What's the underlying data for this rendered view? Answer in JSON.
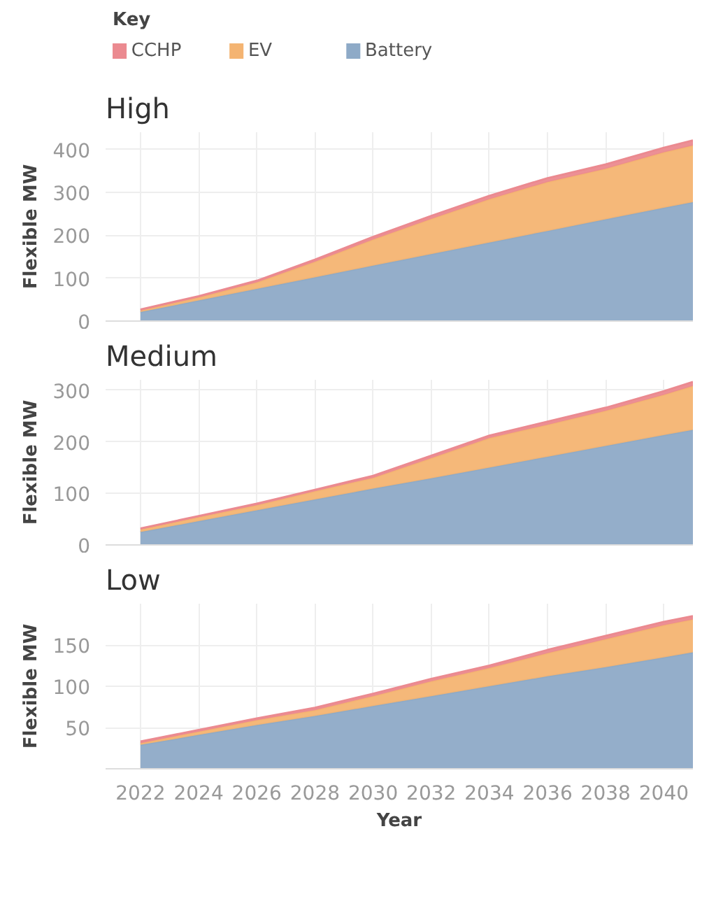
{
  "chart_data": [
    {
      "type": "area",
      "stacked": true,
      "title": "High",
      "ylabel": "Flexible MW",
      "legend_title": "Key",
      "legend": "top",
      "grid": true,
      "tick_labels": "y",
      "x": [
        2022,
        2024,
        2026,
        2028,
        2030,
        2032,
        2034,
        2036,
        2038,
        2040,
        2041
      ],
      "xlim": [
        2020.8,
        2041
      ],
      "xticks": [
        2022,
        2024,
        2026,
        2028,
        2030,
        2032,
        2034,
        2036,
        2038,
        2040
      ],
      "ylim": [
        0,
        440
      ],
      "yticks": [
        0,
        100,
        200,
        300,
        400
      ],
      "series": [
        {
          "name": "Battery",
          "color": "#8eaac7",
          "values": [
            21,
            48,
            75,
            102,
            129,
            156,
            183,
            210,
            237,
            264,
            277
          ]
        },
        {
          "name": "EV",
          "color": "#f4b472",
          "values": [
            4,
            7,
            15,
            36,
            61,
            82,
            101,
            114,
            118,
            129,
            132
          ]
        },
        {
          "name": "CCHP",
          "color": "#eb8a90",
          "values": [
            2,
            3,
            4,
            5,
            6,
            7,
            8,
            9,
            10,
            11,
            12
          ]
        }
      ]
    },
    {
      "type": "area",
      "stacked": true,
      "title": "Medium",
      "ylabel": "Flexible MW",
      "grid": true,
      "tick_labels": "y",
      "x": [
        2022,
        2024,
        2026,
        2028,
        2030,
        2032,
        2034,
        2036,
        2038,
        2040,
        2041
      ],
      "xlim": [
        2020.8,
        2041
      ],
      "xticks": [
        2022,
        2024,
        2026,
        2028,
        2030,
        2032,
        2034,
        2036,
        2038,
        2040
      ],
      "ylim": [
        0,
        320
      ],
      "yticks": [
        0,
        100,
        200,
        300
      ],
      "series": [
        {
          "color": "#8eaac7",
          "values": [
            25,
            46,
            67,
            88,
            109,
            129,
            150,
            171,
            192,
            213,
            223
          ]
        },
        {
          "color": "#f4b472",
          "values": [
            5,
            8,
            10,
            16,
            21,
            39,
            57,
            62,
            68,
            78,
            85
          ]
        },
        {
          "color": "#eb8a90",
          "values": [
            2,
            2,
            3,
            3,
            4,
            5,
            5,
            6,
            6,
            7,
            8
          ]
        }
      ]
    },
    {
      "type": "area",
      "stacked": true,
      "title": "Low",
      "ylabel": "Flexible MW",
      "xlabel": "Year",
      "grid": true,
      "x": [
        2022,
        2024,
        2026,
        2028,
        2030,
        2032,
        2034,
        2036,
        2038,
        2040,
        2041
      ],
      "xlim": [
        2020.8,
        2041
      ],
      "xticks": [
        2022,
        2024,
        2026,
        2028,
        2030,
        2032,
        2034,
        2036,
        2038,
        2040
      ],
      "ylim": [
        0,
        200
      ],
      "yticks": [
        50,
        100,
        150
      ],
      "series": [
        {
          "color": "#8eaac7",
          "values": [
            29,
            41,
            53,
            64,
            76,
            88,
            100,
            112,
            123,
            135,
            141
          ]
        },
        {
          "color": "#f4b472",
          "values": [
            2,
            4,
            6,
            7,
            12,
            18,
            22,
            28,
            34,
            39,
            40
          ]
        },
        {
          "color": "#eb8a90",
          "values": [
            2,
            2,
            2,
            3,
            3,
            3,
            3,
            4,
            4,
            4,
            4
          ]
        }
      ]
    }
  ]
}
